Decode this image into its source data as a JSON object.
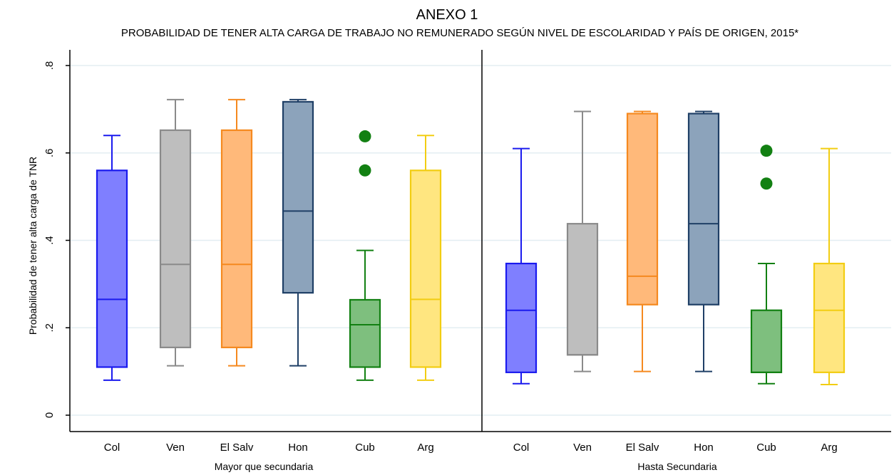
{
  "chart_data": {
    "type": "box",
    "title": "ANEXO 1",
    "subtitle": "PROBABILIDAD DE TENER ALTA CARGA DE TRABAJO NO REMUNERADO SEGÚN NIVEL DE  ESCOLARIDAD Y PAÍS DE ORIGEN, 2015*",
    "ylabel": "Probabilidad de tener alta carga de TNR",
    "ylim": [
      0,
      0.8
    ],
    "yticks": [
      {
        "value": 0,
        "label": "0"
      },
      {
        "value": 0.2,
        "label": ".2"
      },
      {
        "value": 0.4,
        "label": ".4"
      },
      {
        "value": 0.6,
        "label": ".6"
      },
      {
        "value": 0.8,
        "label": ".8"
      }
    ],
    "grid": true,
    "colors": {
      "Col": {
        "fill": "#7f7fff",
        "stroke": "#1a1aee"
      },
      "Ven": {
        "fill": "#bebebe",
        "stroke": "#8a8a8a"
      },
      "El Salv": {
        "fill": "#ffb97a",
        "stroke": "#f5891f"
      },
      "Hon": {
        "fill": "#8ca3bb",
        "stroke": "#1f3f66"
      },
      "Cub": {
        "fill": "#7ebf7e",
        "stroke": "#128012"
      },
      "Arg": {
        "fill": "#ffe680",
        "stroke": "#f2cd12"
      }
    },
    "groups": [
      {
        "name": "Mayor que secundaria",
        "boxes": [
          {
            "category": "Col",
            "whisker_low": 0.08,
            "q1": 0.11,
            "median": 0.265,
            "q3": 0.56,
            "whisker_high": 0.64,
            "outliers": []
          },
          {
            "category": "Ven",
            "whisker_low": 0.113,
            "q1": 0.155,
            "median": 0.345,
            "q3": 0.652,
            "whisker_high": 0.722,
            "outliers": []
          },
          {
            "category": "El Salv",
            "whisker_low": 0.113,
            "q1": 0.155,
            "median": 0.345,
            "q3": 0.652,
            "whisker_high": 0.722,
            "outliers": []
          },
          {
            "category": "Hon",
            "whisker_low": 0.113,
            "q1": 0.28,
            "median": 0.467,
            "q3": 0.717,
            "whisker_high": 0.722,
            "outliers": []
          },
          {
            "category": "Cub",
            "whisker_low": 0.08,
            "q1": 0.11,
            "median": 0.207,
            "q3": 0.264,
            "whisker_high": 0.377,
            "outliers": [
              0.56,
              0.638
            ]
          },
          {
            "category": "Arg",
            "whisker_low": 0.08,
            "q1": 0.11,
            "median": 0.265,
            "q3": 0.56,
            "whisker_high": 0.64,
            "outliers": []
          }
        ]
      },
      {
        "name": "Hasta Secundaria",
        "boxes": [
          {
            "category": "Col",
            "whisker_low": 0.072,
            "q1": 0.098,
            "median": 0.24,
            "q3": 0.347,
            "whisker_high": 0.61,
            "outliers": []
          },
          {
            "category": "Ven",
            "whisker_low": 0.1,
            "q1": 0.138,
            "median": 0.138,
            "q3": 0.438,
            "whisker_high": 0.695,
            "outliers": []
          },
          {
            "category": "El Salv",
            "whisker_low": 0.1,
            "q1": 0.253,
            "median": 0.318,
            "q3": 0.69,
            "whisker_high": 0.695,
            "outliers": []
          },
          {
            "category": "Hon",
            "whisker_low": 0.1,
            "q1": 0.253,
            "median": 0.438,
            "q3": 0.69,
            "whisker_high": 0.695,
            "outliers": []
          },
          {
            "category": "Cub",
            "whisker_low": 0.072,
            "q1": 0.098,
            "median": 0.098,
            "q3": 0.24,
            "whisker_high": 0.347,
            "outliers": [
              0.53,
              0.605
            ]
          },
          {
            "category": "Arg",
            "whisker_low": 0.07,
            "q1": 0.098,
            "median": 0.24,
            "q3": 0.347,
            "whisker_high": 0.61,
            "outliers": []
          }
        ]
      }
    ]
  }
}
